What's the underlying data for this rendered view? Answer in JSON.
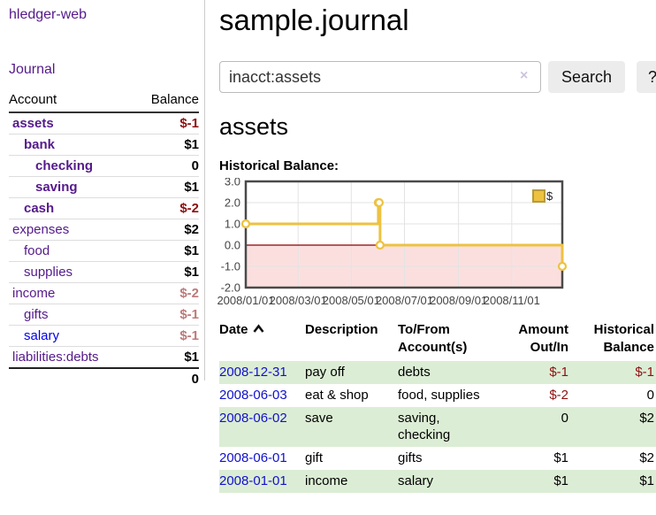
{
  "app": {
    "title": "hledger-web"
  },
  "sidebar": {
    "journal_link": "Journal",
    "accounts": {
      "col_account": "Account",
      "col_balance": "Balance",
      "rows": [
        {
          "name": "assets",
          "depth": 0,
          "emph": true,
          "balance": "$-1"
        },
        {
          "name": "bank",
          "depth": 1,
          "emph": true,
          "balance": "$1"
        },
        {
          "name": "checking",
          "depth": 2,
          "emph": true,
          "balance": "0"
        },
        {
          "name": "saving",
          "depth": 2,
          "emph": true,
          "balance": "$1"
        },
        {
          "name": "cash",
          "depth": 1,
          "emph": true,
          "balance": "$-2"
        },
        {
          "name": "expenses",
          "depth": 0,
          "emph": false,
          "balance": "$2"
        },
        {
          "name": "food",
          "depth": 1,
          "emph": false,
          "balance": "$1"
        },
        {
          "name": "supplies",
          "depth": 1,
          "emph": false,
          "balance": "$1"
        },
        {
          "name": "income",
          "depth": 0,
          "emph": false,
          "balance": "$-2"
        },
        {
          "name": "gifts",
          "depth": 1,
          "emph": false,
          "balance": "$-1"
        },
        {
          "name": "salary",
          "depth": 1,
          "emph": false,
          "balance": "$-1",
          "link_color": "blue"
        },
        {
          "name": "liabilities:debts",
          "depth": 0,
          "emph": false,
          "balance": "$1"
        }
      ],
      "total": "0"
    }
  },
  "main": {
    "title": "sample.journal",
    "search": {
      "value": "inacct:assets",
      "clear_icon": "×",
      "search_button": "Search",
      "help_button": "?"
    },
    "section_heading": "assets",
    "chart_heading": "Historical Balance:"
  },
  "chart_data": {
    "type": "line",
    "step": true,
    "title": "Historical Balance:",
    "series": [
      {
        "name": "$",
        "color": "#EDC240",
        "points": [
          [
            "2008-01-01",
            1
          ],
          [
            "2008-06-01",
            2
          ],
          [
            "2008-06-02",
            2
          ],
          [
            "2008-06-03",
            0
          ],
          [
            "2008-12-31",
            -1
          ]
        ]
      }
    ],
    "ylim": [
      -2,
      3
    ],
    "y_ticks": [
      -2,
      -1,
      0,
      1,
      2,
      3
    ],
    "xlim": [
      "2008-01-01",
      "2008-12-29"
    ],
    "x_tick_labels": [
      "2008/01/01",
      "2008/03/01",
      "2008/05/01",
      "2008/07/01",
      "2008/09/01",
      "2008/11/01"
    ],
    "legend_position": "top-right",
    "grid": true,
    "negative_region_fill": "#FBDFDF",
    "zero_line_color": "#8B0000"
  },
  "transactions": {
    "headers": [
      {
        "lines": [
          "Date"
        ],
        "sortable": true,
        "align": "left"
      },
      {
        "lines": [
          "Description"
        ],
        "align": "left"
      },
      {
        "lines": [
          "To/From",
          "Account(s)"
        ],
        "align": "left"
      },
      {
        "lines": [
          "Amount",
          "Out/In"
        ],
        "align": "right"
      },
      {
        "lines": [
          "Historical",
          "Balance"
        ],
        "align": "right"
      }
    ],
    "rows": [
      {
        "date": "2008-12-31",
        "description": "pay off",
        "accounts": "debts",
        "amount": "$-1",
        "balance": "$-1"
      },
      {
        "date": "2008-06-03",
        "description": "eat & shop",
        "accounts": "food, supplies",
        "amount": "$-2",
        "balance": "0"
      },
      {
        "date": "2008-06-02",
        "description": "save",
        "accounts": "saving, checking",
        "amount": "0",
        "balance": "$2"
      },
      {
        "date": "2008-06-01",
        "description": "gift",
        "accounts": "gifts",
        "amount": "$1",
        "balance": "$2"
      },
      {
        "date": "2008-01-01",
        "description": "income",
        "accounts": "salary",
        "amount": "$1",
        "balance": "$1"
      }
    ]
  },
  "colors": {
    "link_purple": "#551A8B",
    "link_blue": "#0000EE",
    "date_link_blue": "#1111CC",
    "negative_strong": "#8F1010",
    "negative_faded": "#BE7979",
    "row_green": "#DCEDD5",
    "accent_gold": "#EDC240"
  }
}
